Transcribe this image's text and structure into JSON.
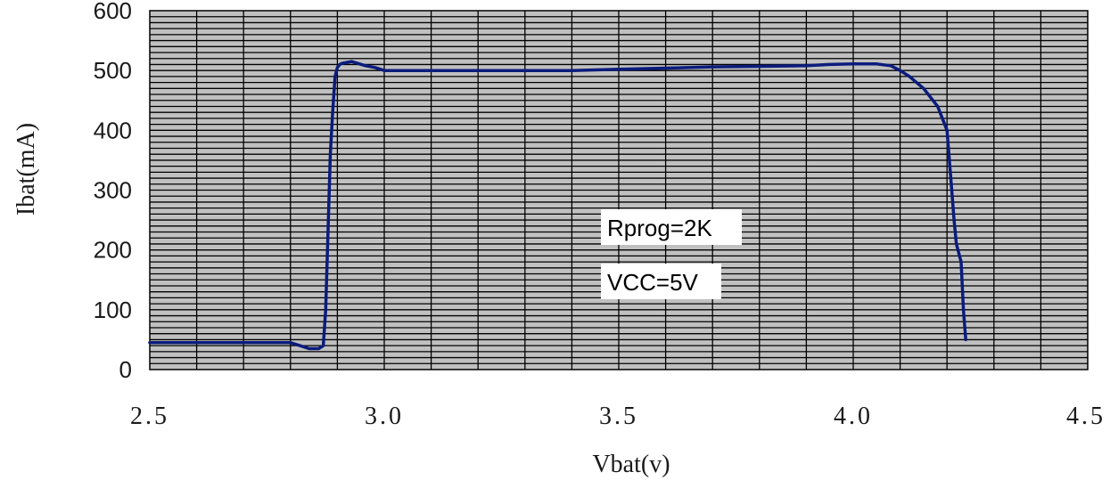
{
  "chart_data": {
    "type": "line",
    "title": "",
    "xlabel": "Vbat(v)",
    "ylabel": "Ibat(mA)",
    "xlim": [
      2.5,
      4.5
    ],
    "ylim": [
      0,
      600
    ],
    "x_ticks": [
      2.5,
      3.0,
      3.5,
      4.0,
      4.5
    ],
    "x_tick_labels": [
      "2.5",
      "3.0",
      "3.5",
      "4.0",
      "4.5"
    ],
    "y_ticks": [
      0,
      100,
      200,
      300,
      400,
      500,
      600
    ],
    "y_tick_labels": [
      "0",
      "100",
      "200",
      "300",
      "400",
      "500",
      "600"
    ],
    "grid": true,
    "annotations": [
      "Rprog=2K",
      "VCC=5V"
    ],
    "series": [
      {
        "x": [
          2.5,
          2.6,
          2.7,
          2.8,
          2.82,
          2.84,
          2.86,
          2.87,
          2.875,
          2.88,
          2.885,
          2.89,
          2.895,
          2.9,
          2.905,
          2.91,
          2.93,
          2.96,
          2.98,
          3.0,
          3.2,
          3.4,
          3.5,
          3.6,
          3.7,
          3.8,
          3.9,
          3.95,
          4.0,
          4.05,
          4.08,
          4.1,
          4.12,
          4.15,
          4.18,
          4.2,
          4.21,
          4.215,
          4.22,
          4.23,
          4.235,
          4.24
        ],
        "y": [
          45,
          45,
          45,
          45,
          40,
          35,
          35,
          40,
          100,
          230,
          360,
          430,
          490,
          505,
          510,
          512,
          515,
          508,
          505,
          500,
          500,
          500,
          502,
          504,
          506,
          507,
          508,
          510,
          511,
          511,
          508,
          500,
          490,
          470,
          440,
          400,
          300,
          250,
          210,
          180,
          100,
          50
        ]
      }
    ],
    "colors": {
      "line": "#0b1c7c",
      "plot_background": "#c0c0c0",
      "grid": "#000000"
    }
  }
}
